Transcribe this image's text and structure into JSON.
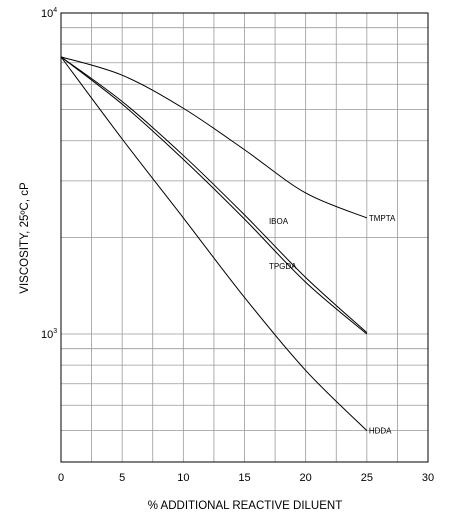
{
  "chart_data": {
    "type": "line",
    "title": "",
    "xlabel": "% ADDITIONAL REACTIVE DILUENT",
    "ylabel": "VISCOSITY, 25ºC, cP",
    "xlim": [
      0,
      30
    ],
    "ylim": [
      450,
      10000
    ],
    "y_scale": "log",
    "grid": true,
    "legend": "none (labels drawn at line ends)",
    "x_ticks": [
      "0",
      "5",
      "10",
      "15",
      "20",
      "25",
      "30"
    ],
    "y_ticks": [
      {
        "base": "10",
        "exp": "4",
        "value": 10000
      },
      {
        "base": "10",
        "exp": "3",
        "value": 1000
      }
    ],
    "series": [
      {
        "name": "TMPTA",
        "label_at": [
          25,
          2300
        ],
        "points": [
          [
            0,
            7300
          ],
          [
            5,
            6400
          ],
          [
            10,
            5050
          ],
          [
            15,
            3750
          ],
          [
            20,
            2750
          ],
          [
            25,
            2300
          ]
        ]
      },
      {
        "name": "IBOA",
        "label_at": [
          17,
          2250
        ],
        "points": [
          [
            0,
            7300
          ],
          [
            5,
            5300
          ],
          [
            10,
            3600
          ],
          [
            15,
            2350
          ],
          [
            20,
            1500
          ],
          [
            25,
            1010
          ]
        ]
      },
      {
        "name": "TPGDA",
        "label_at": [
          17,
          1630
        ],
        "points": [
          [
            0,
            7300
          ],
          [
            5,
            5200
          ],
          [
            10,
            3500
          ],
          [
            15,
            2280
          ],
          [
            20,
            1450
          ],
          [
            25,
            1000
          ]
        ]
      },
      {
        "name": "HDDA",
        "label_at": [
          25,
          500
        ],
        "points": [
          [
            0,
            7300
          ],
          [
            5,
            4050
          ],
          [
            10,
            2300
          ],
          [
            15,
            1300
          ],
          [
            20,
            770
          ],
          [
            25,
            500
          ]
        ]
      }
    ]
  }
}
